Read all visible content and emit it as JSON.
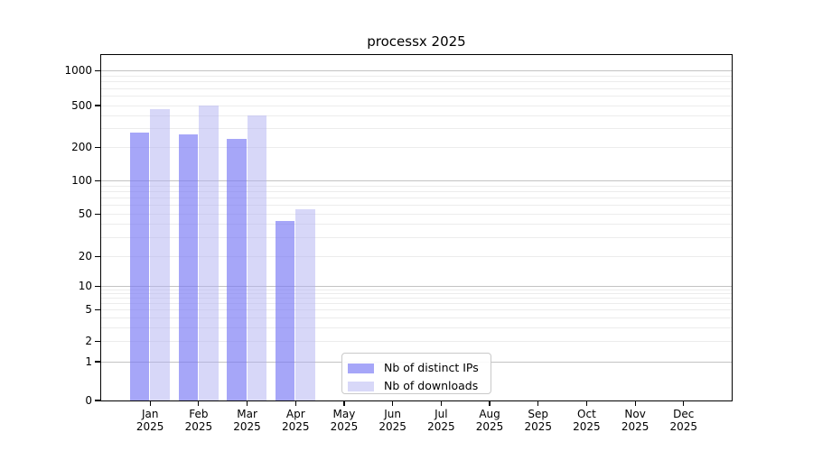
{
  "title": "processx 2025",
  "chart_data": {
    "type": "bar",
    "title": "processx 2025",
    "months": [
      "Jan",
      "Feb",
      "Mar",
      "Apr",
      "May",
      "Jun",
      "Jul",
      "Aug",
      "Sep",
      "Oct",
      "Nov",
      "Dec"
    ],
    "year": "2025",
    "series": [
      {
        "name": "Nb of distinct IPs",
        "values": [
          275,
          265,
          243,
          43,
          0,
          0,
          0,
          0,
          0,
          0,
          0,
          0
        ]
      },
      {
        "name": "Nb of downloads",
        "values": [
          465,
          500,
          402,
          55,
          0,
          0,
          0,
          0,
          0,
          0,
          0,
          0
        ]
      }
    ],
    "y_ticks": [
      0,
      1,
      2,
      5,
      10,
      20,
      50,
      100,
      200,
      500,
      1000
    ],
    "y_scale": "log-like (log10(1+x))",
    "ylim": [
      0,
      1400
    ],
    "grid": "horizontal, log minor + decade major",
    "legend_position": "inside-bottom-center"
  },
  "legend": {
    "items": [
      {
        "label": "Nb of distinct IPs"
      },
      {
        "label": "Nb of downloads"
      }
    ]
  },
  "colors": {
    "bar_ips": "rgba(118,118,244,0.65)",
    "bar_downloads": "rgba(176,176,241,0.5)",
    "legend_swatch_ips": "#a6a6f8",
    "legend_swatch_downloads": "#d8d8f8",
    "gridline_major": "#c3c3c3",
    "gridline_minor": "#ececec",
    "axis": "#000000",
    "background": "#ffffff"
  }
}
